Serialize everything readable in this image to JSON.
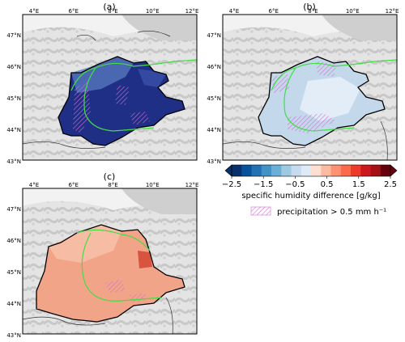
{
  "panels": [
    {
      "id": "a",
      "label": "(a)",
      "fill_core": "#1f2f86",
      "fill_edge": "#5a7cc0"
    },
    {
      "id": "b",
      "label": "(b)",
      "fill_core": "#c4d8ec",
      "fill_edge": "#e6eff8"
    },
    {
      "id": "c",
      "label": "(c)",
      "fill_core": "#f2a488",
      "fill_edge": "#f8c2ab"
    }
  ],
  "lon_ticks": [
    "4°E",
    "6°E",
    "8°E",
    "10°E",
    "12°E"
  ],
  "lat_ticks": [
    "47°N",
    "46°N",
    "45°N",
    "44°N",
    "43°N"
  ],
  "colorbar": {
    "ticks": [
      "−2.5",
      "−1.5",
      "−0.5",
      "0.5",
      "1.5",
      "2.5"
    ],
    "label": "specific humidity difference [g/kg]",
    "colors": [
      "#08306b",
      "#08519c",
      "#2171b5",
      "#4292c6",
      "#6baed6",
      "#9ecae1",
      "#c6dbef",
      "#deebf7",
      "#fee0d2",
      "#fcbba1",
      "#fc9272",
      "#fb6a4a",
      "#ef3b2c",
      "#cb181d",
      "#a50f15",
      "#67000d"
    ]
  },
  "legend": {
    "hatch_label": "precipitation > 0.5 mm h⁻¹",
    "hatch_color": "#d070d0"
  },
  "colors": {
    "border_green": "#44dd44",
    "terrain": "#d8d8d8",
    "outline": "#000000"
  }
}
